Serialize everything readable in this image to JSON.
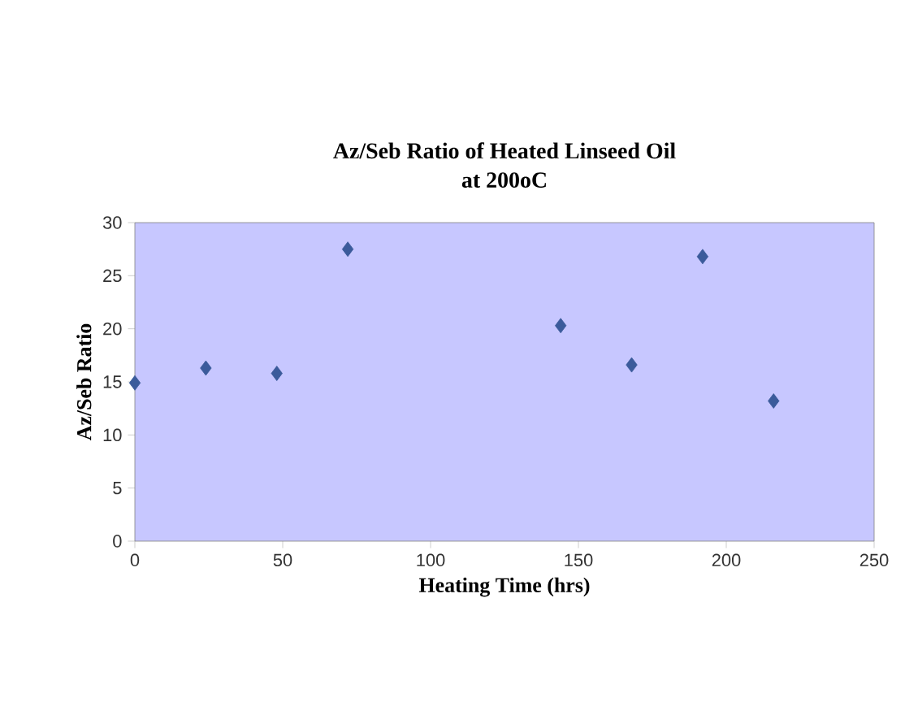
{
  "chart_data": {
    "type": "scatter",
    "title": "Az/Seb Ratio of Heated Linseed Oil\nat 200oC",
    "xlabel": "Heating Time (hrs)",
    "ylabel": "Az/Seb Ratio",
    "x": [
      0,
      24,
      48,
      72,
      144,
      168,
      192,
      216
    ],
    "series": [
      {
        "color": "#3b5b9b",
        "values": [
          14.9,
          16.3,
          15.8,
          27.5,
          20.3,
          16.6,
          26.8,
          13.2
        ]
      }
    ],
    "xlim": [
      0,
      250
    ],
    "xticks": [
      0,
      50,
      100,
      150,
      200,
      250
    ],
    "ylim": [
      0,
      30
    ],
    "yticks": [
      0,
      5,
      10,
      15,
      20,
      25,
      30
    ],
    "marker": "diamond",
    "grid": false
  }
}
